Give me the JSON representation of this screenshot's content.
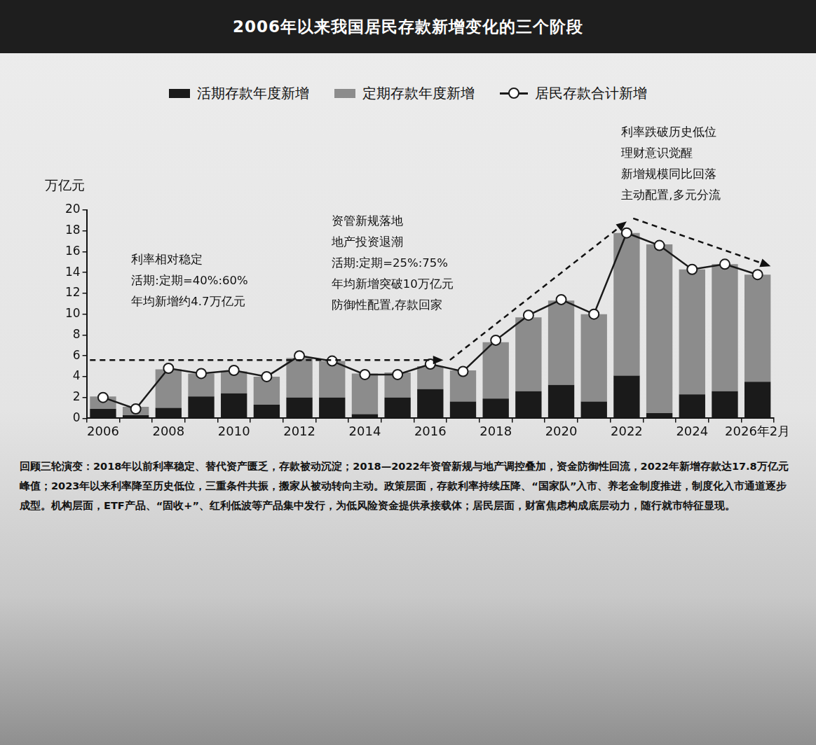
{
  "chart_data": {
    "type": "bar",
    "title": "2006年以来我国居民存款新增变化的三个阶段",
    "stacked": true,
    "categories": [
      "2006",
      null,
      "2008",
      null,
      "2010",
      null,
      "2012",
      null,
      "2014",
      null,
      "2016",
      null,
      "2018",
      null,
      "2020",
      null,
      "2022",
      null,
      "2024",
      null,
      "2026年2月"
    ],
    "series": [
      {
        "name": "活期存款年度新增",
        "color": "#1a1a1a",
        "values": [
          0.9,
          0.3,
          1.0,
          2.1,
          2.4,
          1.3,
          2.0,
          2.0,
          0.4,
          2.0,
          2.8,
          1.6,
          1.9,
          2.6,
          3.2,
          1.6,
          4.1,
          0.5,
          2.3,
          2.6,
          3.5
        ]
      },
      {
        "name": "定期存款年度新增",
        "color": "#8c8c8c",
        "values": [
          1.2,
          0.8,
          3.7,
          2.2,
          2.1,
          2.7,
          3.8,
          3.5,
          3.9,
          2.4,
          2.2,
          3.0,
          5.4,
          7.1,
          8.1,
          8.4,
          13.7,
          16.2,
          12.0,
          12.2,
          10.3
        ]
      },
      {
        "name": "居民存款合计新增",
        "type": "line",
        "color": "#1a1a1a",
        "marker": "circle",
        "values": [
          2.0,
          0.9,
          4.8,
          4.3,
          4.6,
          4.0,
          6.0,
          5.5,
          4.2,
          4.2,
          5.2,
          4.5,
          7.5,
          9.9,
          11.4,
          10.0,
          17.8,
          16.6,
          14.3,
          14.8,
          13.8
        ]
      }
    ],
    "y_label": "万亿元",
    "ylim": [
      0,
      20
    ],
    "yticks": [
      0,
      2,
      4,
      6,
      8,
      10,
      12,
      14,
      16,
      18,
      20
    ],
    "grid": false,
    "legend": "top",
    "annotations": [
      {
        "text": [
          "利率相对稳定",
          "活期:定期=40%:60%",
          "年均新增约4.7万亿元"
        ]
      },
      {
        "text": [
          "资管新规落地",
          "地产投资退潮",
          "活期:定期=25%:75%",
          "年均新增突破10万亿元",
          "防御性配置,存款回家"
        ]
      },
      {
        "text": [
          "利率跌破历史低位",
          "理财意识觉醒",
          "新增规模同比回落",
          "主动配置,多元分流"
        ]
      }
    ],
    "arrows": [
      {
        "x": [
          -0.4,
          10.4
        ],
        "y": [
          5.6,
          5.6
        ]
      },
      {
        "x": [
          10.6,
          16.0
        ],
        "y": [
          5.6,
          18.9
        ]
      },
      {
        "x": [
          16.2,
          20.4
        ],
        "y": [
          19.2,
          14.6
        ]
      }
    ],
    "caption": "回顾三轮演变：2018年以前利率稳定、替代资产匮乏，存款被动沉淀；2018—2022年资管新规与地产调控叠加，资金防御性回流，2022年新增存款达17.8万亿元峰值；2023年以来利率降至历史低位，三重条件共振，搬家从被动转向主动。政策层面，存款利率持续压降、“国家队”入市、养老金制度推进，制度化入市通道逐步成型。机构层面，ETF产品、“固收+”、红利低波等产品集中发行，为低风险资金提供承接载体；居民层面，财富焦虑构成底层动力，随行就市特征显现。"
  }
}
